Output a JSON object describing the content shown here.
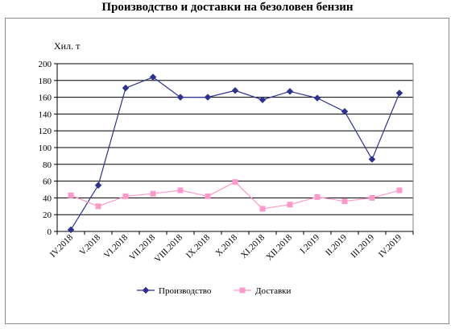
{
  "chart_data": {
    "type": "line",
    "title": "Производство и доставки на безоловен бензин",
    "ylabel": "Хил. т",
    "xlabel": "",
    "ylim": [
      0,
      200
    ],
    "yticks": [
      0,
      20,
      40,
      60,
      80,
      100,
      120,
      140,
      160,
      180,
      200
    ],
    "categories": [
      "IV.2018",
      "V.2018",
      "VI.2018",
      "VII.2018",
      "VIII.2018",
      "IX.2018",
      "X.2018",
      "XI.2018",
      "XII.2018",
      "I.2019",
      "II.2019",
      "III.2019",
      "IV.2019"
    ],
    "grid": true,
    "legend_position": "bottom",
    "series": [
      {
        "name": "Производство",
        "color": "#2e3192",
        "marker": "diamond",
        "values": [
          2,
          55,
          171,
          184,
          160,
          160,
          168,
          157,
          167,
          159,
          143,
          86,
          165
        ]
      },
      {
        "name": "Доставки",
        "color": "#ff99cc",
        "marker": "square",
        "values": [
          43,
          30,
          42,
          45,
          49,
          42,
          59,
          27,
          32,
          41,
          36,
          40,
          49
        ]
      }
    ]
  }
}
